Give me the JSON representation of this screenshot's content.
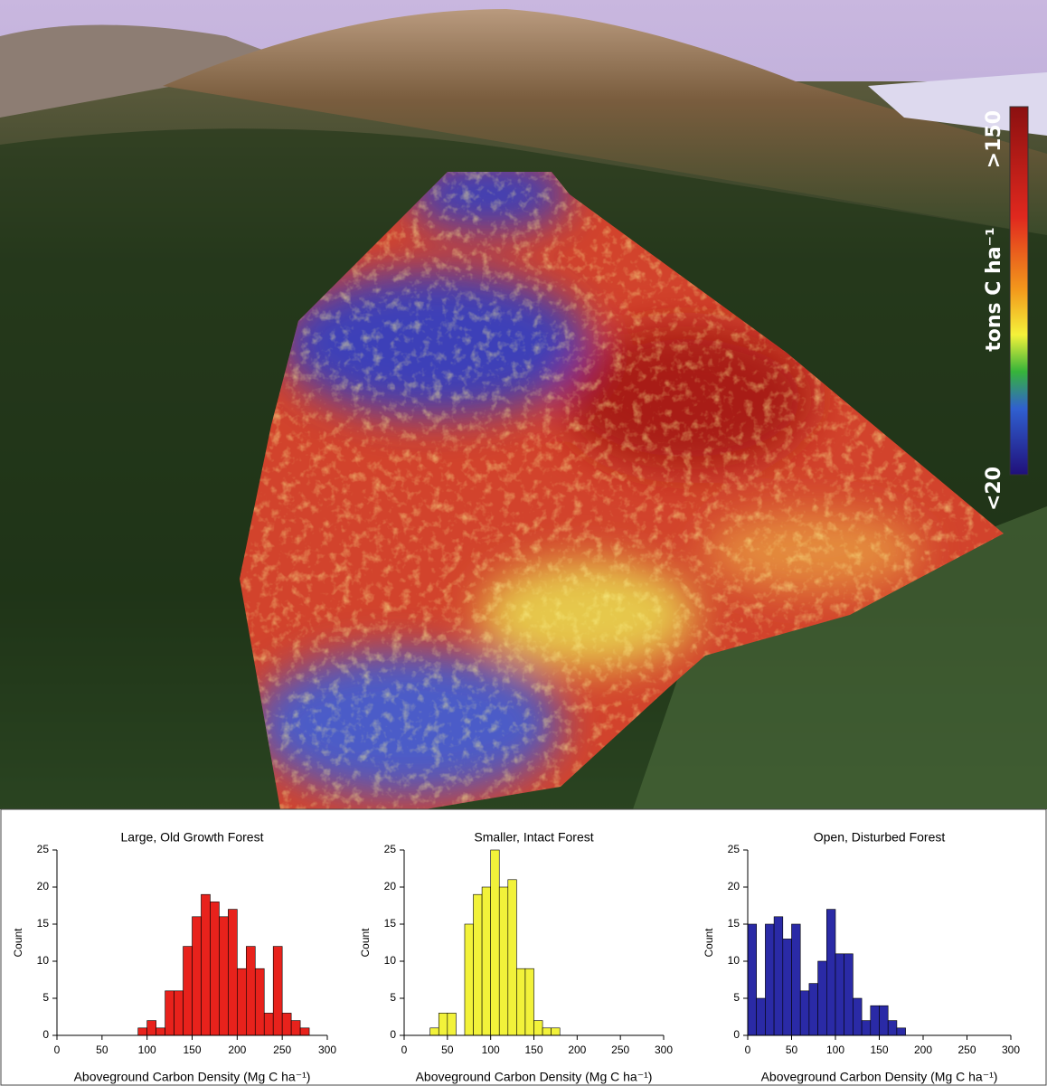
{
  "chart_data": [
    {
      "type": "histogram",
      "title": "Large, Old Growth Forest",
      "xlabel": "Aboveground Carbon Density (Mg C ha⁻¹)",
      "ylabel": "Count",
      "color": "#e8221c",
      "bins": [
        90,
        100,
        110,
        120,
        130,
        140,
        150,
        160,
        170,
        180,
        190,
        200,
        210,
        220,
        230,
        240,
        250,
        260,
        270,
        280
      ],
      "counts": [
        1,
        2,
        1,
        6,
        6,
        12,
        16,
        19,
        18,
        16,
        17,
        9,
        12,
        9,
        3,
        12,
        3,
        2,
        1
      ],
      "xlim": [
        0,
        300
      ],
      "ylim": [
        0,
        25
      ],
      "xticks": [
        0,
        50,
        100,
        150,
        200,
        250,
        300
      ],
      "yticks": [
        0,
        5,
        10,
        15,
        20,
        25
      ]
    },
    {
      "type": "histogram",
      "title": "Smaller, Intact Forest",
      "xlabel": "Aboveground Carbon Density (Mg C ha⁻¹)",
      "ylabel": "Count",
      "color": "#f2f23a",
      "bins": [
        30,
        40,
        50,
        60,
        70,
        80,
        90,
        100,
        110,
        120,
        130,
        140,
        150,
        160,
        170,
        180
      ],
      "counts": [
        1,
        3,
        3,
        0,
        15,
        19,
        20,
        25,
        20,
        21,
        9,
        9,
        2,
        1,
        1
      ],
      "xlim": [
        0,
        300
      ],
      "ylim": [
        0,
        25
      ],
      "xticks": [
        0,
        50,
        100,
        150,
        200,
        250,
        300
      ],
      "yticks": [
        0,
        5,
        10,
        15,
        20,
        25
      ]
    },
    {
      "type": "histogram",
      "title": "Open, Disturbed Forest",
      "xlabel": "Aboveground Carbon Density (Mg C ha⁻¹)",
      "ylabel": "Count",
      "color": "#2a2aa6",
      "bins": [
        0,
        10,
        20,
        30,
        40,
        50,
        60,
        70,
        80,
        90,
        100,
        110,
        120,
        130,
        140,
        150,
        160,
        170,
        180
      ],
      "counts": [
        15,
        5,
        15,
        16,
        13,
        15,
        6,
        7,
        10,
        17,
        11,
        11,
        5,
        2,
        4,
        4,
        2,
        1
      ],
      "xlim": [
        0,
        300
      ],
      "ylim": [
        0,
        25
      ],
      "xticks": [
        0,
        50,
        100,
        150,
        200,
        250,
        300
      ],
      "yticks": [
        0,
        5,
        10,
        15,
        20,
        25
      ]
    }
  ],
  "map": {
    "colorbar": {
      "max_label": ">150",
      "min_label": "<20",
      "unit_label": "tons C ha⁻¹"
    }
  }
}
